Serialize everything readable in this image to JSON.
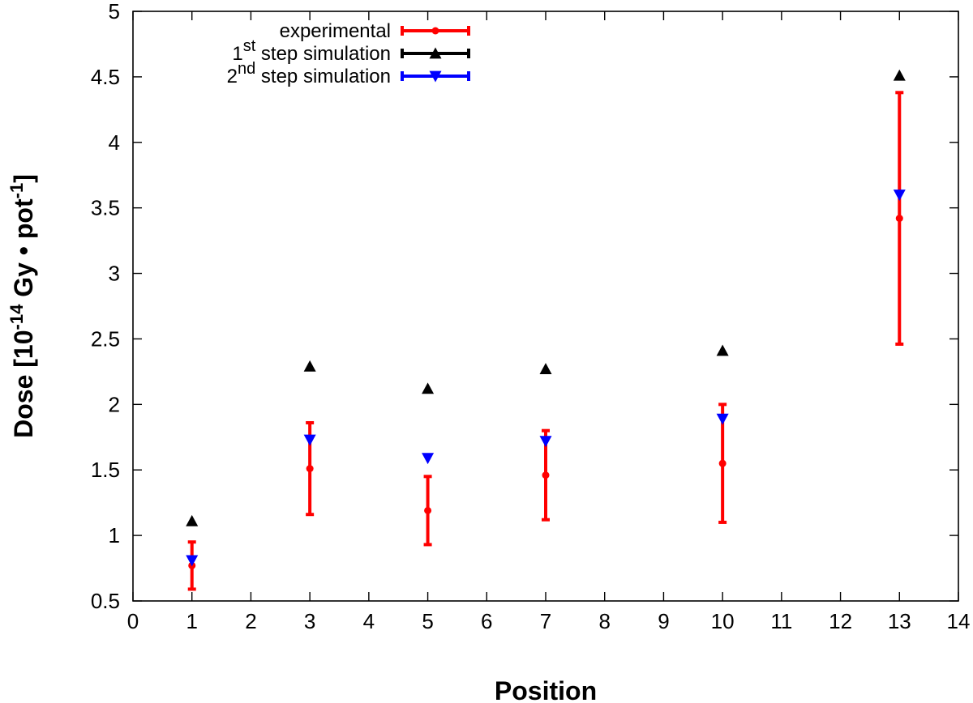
{
  "chart_data": {
    "type": "scatter",
    "title": "",
    "xlabel": "Position",
    "ylabel": "Dose [10^-14 Gy · pot^-1]",
    "ylabel_parts": {
      "before": "Dose [10",
      "exp1": "-14",
      "middle": " Gy • pot",
      "exp2": "-1",
      "after": "]"
    },
    "xlim": [
      0,
      14
    ],
    "ylim": [
      0.5,
      5
    ],
    "xticks": [
      0,
      1,
      2,
      3,
      4,
      5,
      6,
      7,
      8,
      9,
      10,
      11,
      12,
      13,
      14
    ],
    "yticks": [
      0.5,
      1,
      1.5,
      2,
      2.5,
      3,
      3.5,
      4,
      4.5,
      5
    ],
    "ytick_labels": [
      "0.5",
      "1",
      "1.5",
      "2",
      "2.5",
      "3",
      "3.5",
      "4",
      "4.5",
      "5"
    ],
    "grid": false,
    "legend_position": "top-left",
    "x": [
      1,
      3,
      5,
      7,
      10,
      13
    ],
    "series": [
      {
        "name": "experimental",
        "legend_parts": {
          "sup": "",
          "rest": "experimental"
        },
        "marker": "circle",
        "color": "#ff0000",
        "values": [
          0.77,
          1.51,
          1.19,
          1.46,
          1.55,
          3.42
        ],
        "error_low": [
          0.59,
          1.16,
          0.93,
          1.12,
          1.1,
          2.46
        ],
        "error_high": [
          0.95,
          1.86,
          1.45,
          1.8,
          2.0,
          4.38
        ]
      },
      {
        "name": "1st step simulation",
        "legend_parts": {
          "num": "1",
          "sup": "st",
          "rest": " step simulation"
        },
        "marker": "triangle-up",
        "color": "#000000",
        "values": [
          1.11,
          2.29,
          2.12,
          2.27,
          2.41,
          4.51
        ]
      },
      {
        "name": "2nd step simulation",
        "legend_parts": {
          "num": "2",
          "sup": "nd",
          "rest": " step simulation"
        },
        "marker": "triangle-down",
        "color": "#0000ff",
        "values": [
          0.81,
          1.73,
          1.59,
          1.72,
          1.89,
          3.6
        ]
      }
    ]
  }
}
